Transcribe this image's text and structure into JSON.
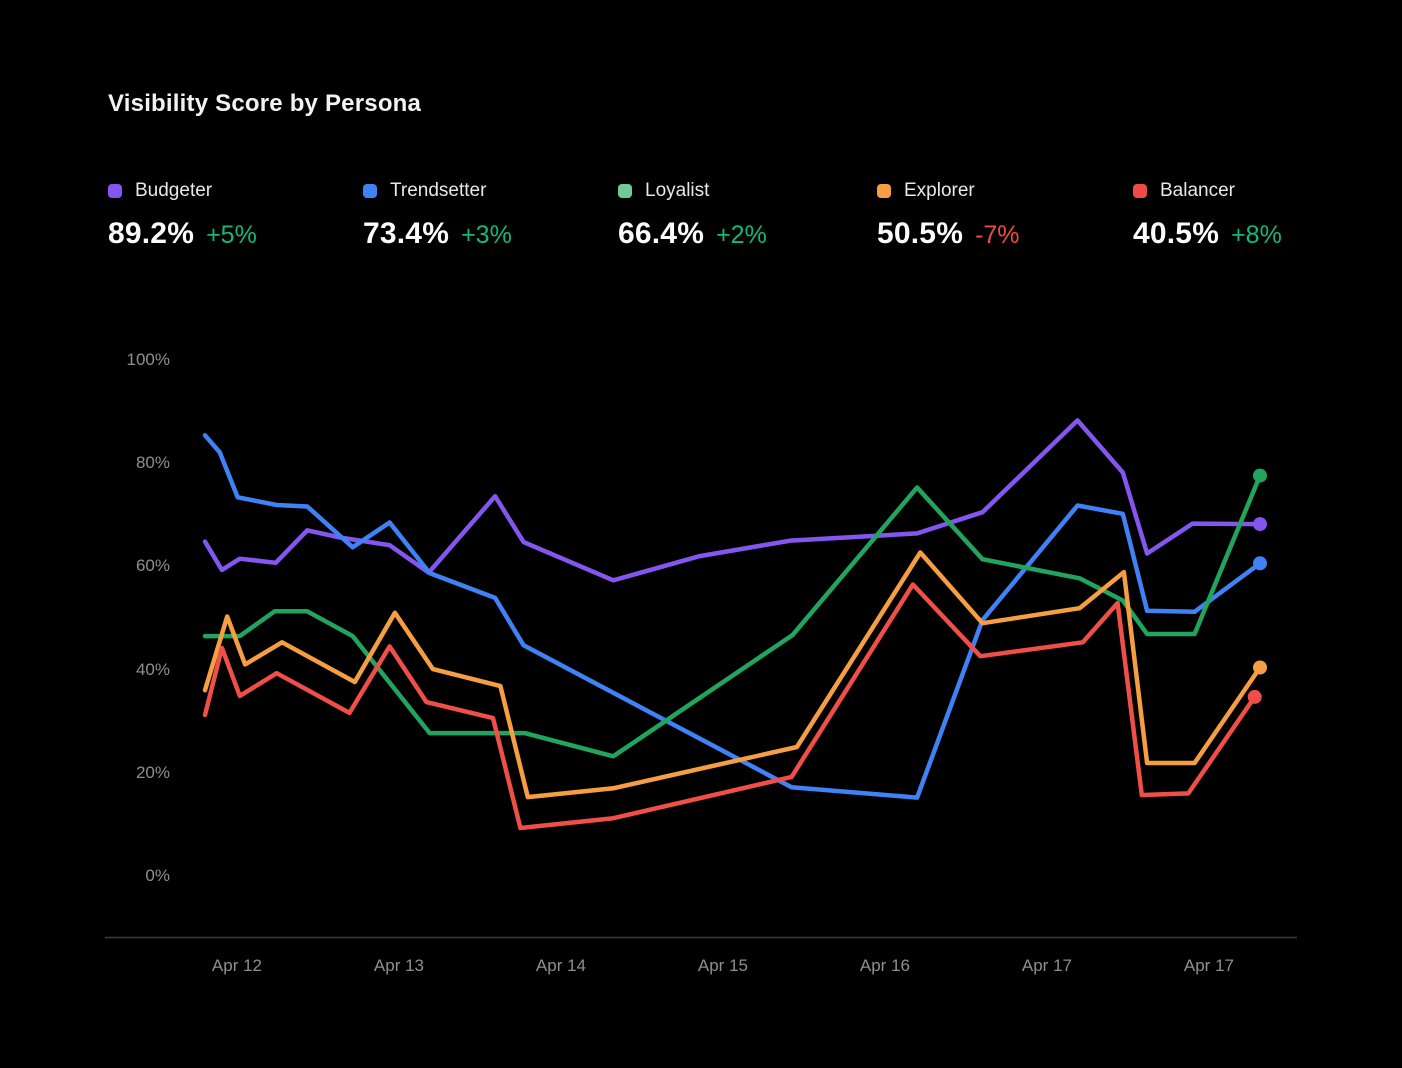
{
  "title": "Visibility Score by Persona",
  "colors": {
    "background": "#000000",
    "title_text": "#f2f2f2",
    "axis_text": "#8f8f8f",
    "axis_line": "#3a3a3a",
    "delta_up": "#12b77f",
    "delta_down": "#ef4b46"
  },
  "legend": [
    {
      "name": "Budgeter",
      "value": "89.2%",
      "delta": "+5%",
      "delta_dir": "up",
      "color": "#8456f0"
    },
    {
      "name": "Trendsetter",
      "value": "73.4%",
      "delta": "+3%",
      "delta_dir": "up",
      "color": "#3f82f6"
    },
    {
      "name": "Loyalist",
      "value": "66.4%",
      "delta": "+2%",
      "delta_dir": "up",
      "color": "#6fcb95"
    },
    {
      "name": "Explorer",
      "value": "50.5%",
      "delta": "-7%",
      "delta_dir": "down",
      "color": "#f59e42"
    },
    {
      "name": "Balancer",
      "value": "40.5%",
      "delta": "+8%",
      "delta_dir": "up",
      "color": "#ef4b46"
    }
  ],
  "chart_data": {
    "type": "line",
    "title": "Visibility Score by Persona",
    "x_axis": {
      "labels": [
        "Apr 12",
        "Apr 13",
        "Apr 14",
        "Apr 15",
        "Apr 16",
        "Apr 17",
        "Apr 17"
      ]
    },
    "y_axis": {
      "labels": [
        "100%",
        "80%",
        "60%",
        "40%",
        "20%",
        "0%"
      ],
      "min": 0,
      "max": 100,
      "unit": "%"
    },
    "grid": false,
    "legend_position": "top",
    "series": [
      {
        "name": "Budgeter",
        "color": "#8456f0",
        "end_dot": true,
        "points": [
          [
            0,
            64.8
          ],
          [
            1.6,
            59.3
          ],
          [
            3.3,
            61.5
          ],
          [
            6.7,
            60.7
          ],
          [
            9.7,
            67.0
          ],
          [
            12.8,
            65.6
          ],
          [
            17.5,
            64.1
          ],
          [
            21.2,
            58.8
          ],
          [
            27.5,
            73.6
          ],
          [
            30.2,
            64.7
          ],
          [
            38.7,
            57.3
          ],
          [
            46.9,
            62.0
          ],
          [
            55.5,
            65.0
          ],
          [
            67.5,
            66.4
          ],
          [
            73.7,
            70.5
          ],
          [
            82.7,
            88.3
          ],
          [
            87.0,
            78.2
          ],
          [
            89.3,
            62.5
          ],
          [
            93.6,
            68.3
          ],
          [
            100,
            68.2
          ]
        ]
      },
      {
        "name": "Trendsetter",
        "color": "#3f82f6",
        "end_dot": true,
        "points": [
          [
            0,
            85.4
          ],
          [
            1.4,
            82.1
          ],
          [
            3.1,
            73.4
          ],
          [
            6.8,
            71.9
          ],
          [
            9.7,
            71.6
          ],
          [
            14.0,
            63.7
          ],
          [
            17.5,
            68.5
          ],
          [
            21.3,
            58.7
          ],
          [
            27.5,
            53.9
          ],
          [
            30.2,
            44.7
          ],
          [
            55.6,
            17.2
          ],
          [
            67.5,
            15.2
          ],
          [
            73.7,
            49.6
          ],
          [
            82.7,
            71.8
          ],
          [
            87.0,
            70.2
          ],
          [
            89.3,
            51.4
          ],
          [
            93.8,
            51.2
          ],
          [
            100,
            60.6
          ]
        ]
      },
      {
        "name": "Loyalist",
        "color": "#21a45e",
        "end_dot": true,
        "points": [
          [
            0,
            46.5
          ],
          [
            3.3,
            46.5
          ],
          [
            6.6,
            51.3
          ],
          [
            9.7,
            51.3
          ],
          [
            14.0,
            46.5
          ],
          [
            21.3,
            27.7
          ],
          [
            30.3,
            27.7
          ],
          [
            38.7,
            23.2
          ],
          [
            55.7,
            46.7
          ],
          [
            67.5,
            75.3
          ],
          [
            73.7,
            61.4
          ],
          [
            82.9,
            57.7
          ],
          [
            87.0,
            53.4
          ],
          [
            89.3,
            46.9
          ],
          [
            93.8,
            46.9
          ],
          [
            100,
            77.6
          ]
        ]
      },
      {
        "name": "Explorer",
        "color": "#f59e42",
        "end_dot": true,
        "points": [
          [
            0,
            36.0
          ],
          [
            2.1,
            50.3
          ],
          [
            3.8,
            41.0
          ],
          [
            7.3,
            45.3
          ],
          [
            14.2,
            37.6
          ],
          [
            18.0,
            51.0
          ],
          [
            21.6,
            40.1
          ],
          [
            28.0,
            36.8
          ],
          [
            30.6,
            15.3
          ],
          [
            38.7,
            17.0
          ],
          [
            56.1,
            25.0
          ],
          [
            67.8,
            62.7
          ],
          [
            73.7,
            49.0
          ],
          [
            82.9,
            51.9
          ],
          [
            87.1,
            58.9
          ],
          [
            89.3,
            21.9
          ],
          [
            93.8,
            21.9
          ],
          [
            100,
            40.4
          ]
        ]
      },
      {
        "name": "Balancer",
        "color": "#ef4f48",
        "end_dot": true,
        "points": [
          [
            0,
            31.2
          ],
          [
            1.6,
            44.2
          ],
          [
            3.3,
            34.9
          ],
          [
            6.8,
            39.3
          ],
          [
            13.7,
            31.6
          ],
          [
            17.5,
            44.5
          ],
          [
            21.0,
            33.7
          ],
          [
            27.3,
            30.6
          ],
          [
            29.9,
            9.3
          ],
          [
            38.7,
            11.2
          ],
          [
            55.6,
            19.2
          ],
          [
            67.1,
            56.5
          ],
          [
            73.5,
            42.6
          ],
          [
            83.2,
            45.3
          ],
          [
            86.5,
            52.9
          ],
          [
            88.8,
            15.7
          ],
          [
            93.2,
            16.0
          ],
          [
            99.5,
            34.7
          ]
        ]
      }
    ]
  }
}
